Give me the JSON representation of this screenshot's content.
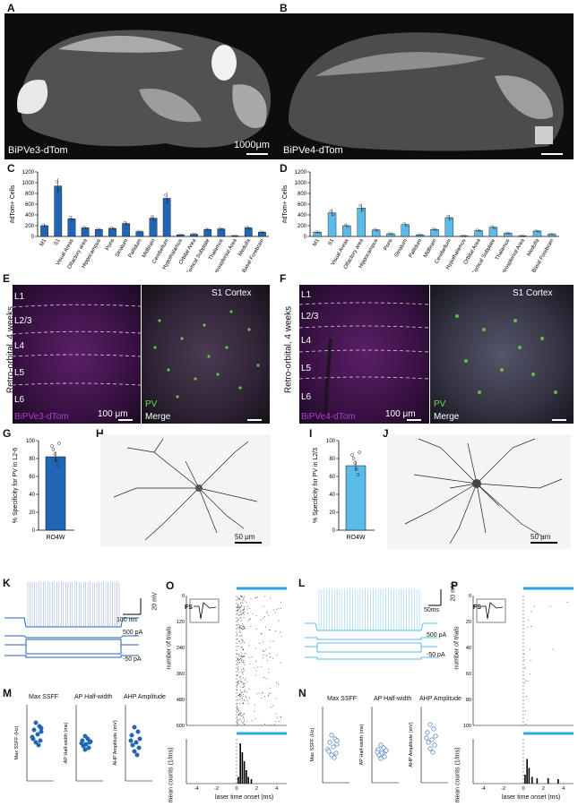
{
  "panels": {
    "A": "A",
    "B": "B",
    "C": "C",
    "D": "D",
    "E": "E",
    "F": "F",
    "G": "G",
    "H": "H",
    "I": "I",
    "J": "J",
    "K": "K",
    "L": "L",
    "M": "M",
    "N": "N",
    "O": "O",
    "P": "P"
  },
  "A": {
    "label": "BiPVe3-dTom",
    "scale": "1000μm"
  },
  "B": {
    "label": "BiPVe4-dTom"
  },
  "E": {
    "region": "S1 Cortex",
    "side": "Retro-orbital, 4 weeks",
    "layers": [
      "L1",
      "L2/3",
      "L4",
      "L5",
      "L6"
    ],
    "left_label": "BiPVe3-dTom",
    "pv": "PV",
    "merge": "Merge",
    "scale": "100 μm"
  },
  "F": {
    "region": "S1 Cortex",
    "side": "Retro-orbital, 4 weeks",
    "layers": [
      "L1",
      "L2/3",
      "L4",
      "L5",
      "L6"
    ],
    "left_label": "BiPVe4-dTom",
    "pv": "PV",
    "merge": "Merge",
    "scale": "100 μm"
  },
  "H": {
    "scale": "50 μm"
  },
  "J": {
    "scale": "50 μm"
  },
  "K": {
    "scale_t": "100 ms",
    "scale_v": "20 mV",
    "i_hi": "500 pA",
    "i_lo": "-50 pA"
  },
  "L": {
    "scale_t": "50ms",
    "scale_v": "20 mV",
    "i_hi": "500 pA",
    "i_lo": "-50 pA"
  },
  "O": {
    "inset": "FS",
    "inset_x": "time (ms)",
    "ylabel_top": "number of trials",
    "ylabel_bot": "mean counts (1/ms)",
    "xlabel": "laser time onset (ms)"
  },
  "P": {
    "inset": "FS",
    "inset_x": "time (ms)",
    "ylabel_top": "number of trials",
    "ylabel_bot": "mean counts (1/ms)",
    "xlabel": "laser time onset (ms)"
  },
  "M": {
    "titles": [
      "Max SSFF",
      "AP Half-width",
      "AHP Amplitude"
    ],
    "ylabels": [
      "Max SSFF (Hz)",
      "AP Half-width (ms)",
      "AHP Amplitude (mV)"
    ]
  },
  "N": {
    "titles": [
      "Max SSFF",
      "AP  Half-width",
      "AHP Amplitude"
    ],
    "ylabels": [
      "Max SSFF (Hz)",
      "AP Half-width (ms)",
      "AHP Amplitude (mV)"
    ]
  },
  "chart_data": [
    {
      "id": "C",
      "type": "bar",
      "ylabel": "#dTom+ Cells",
      "ylim": [
        0,
        1200
      ],
      "yticks": [
        0,
        200,
        400,
        600,
        800,
        1000,
        1200
      ],
      "color": "#2166b5",
      "categories": [
        "M1",
        "S1",
        "Visual Areas",
        "Olfactory area",
        "Hippocampus",
        "Pons",
        "Striatum",
        "Pallidum",
        "Midbrain",
        "Cerebellum",
        "Hypothalamus",
        "Orbital Area",
        "Cortical Subplate",
        "Thalamus",
        "Retrosplenial Area",
        "Medulla",
        "Basal Forebrain"
      ],
      "values": [
        200,
        940,
        330,
        160,
        130,
        150,
        240,
        90,
        340,
        710,
        30,
        40,
        130,
        140,
        10,
        160,
        80
      ]
    },
    {
      "id": "D",
      "type": "bar",
      "ylabel": "#dTom+ Cells",
      "ylim": [
        0,
        1200
      ],
      "yticks": [
        0,
        200,
        400,
        600,
        800,
        1000,
        1200
      ],
      "color": "#5bbbe8",
      "categories": [
        "M1",
        "S1",
        "Visual Areas",
        "Olfactory area",
        "Hippocampus",
        "Pons",
        "Striatum",
        "Pallidum",
        "Midbrain",
        "Cerebellum",
        "Hypothalamus",
        "Orbital Area",
        "Cortical Subplate",
        "Thalamus",
        "Retrosplenial Area",
        "Medulla",
        "Basal Forebrain"
      ],
      "values": [
        80,
        440,
        200,
        530,
        120,
        50,
        220,
        30,
        130,
        350,
        10,
        110,
        170,
        60,
        10,
        100,
        40
      ]
    },
    {
      "id": "G",
      "type": "bar",
      "ylabel": "% Specificity for PV in L2-6",
      "ylim": [
        0,
        100
      ],
      "yticks": [
        0,
        20,
        40,
        60,
        80,
        100
      ],
      "categories": [
        "RO4W"
      ],
      "values": [
        82
      ],
      "color": "#2166b5"
    },
    {
      "id": "I",
      "type": "bar",
      "ylabel": "% Specificity for  PV in L2/3",
      "ylim": [
        0,
        100
      ],
      "yticks": [
        0,
        20,
        40,
        60,
        80,
        100
      ],
      "categories": [
        "RO4W"
      ],
      "values": [
        72
      ],
      "color": "#5bbbe8"
    }
  ],
  "colors": {
    "bipve3": "#2166b5",
    "bipve4": "#5bbbe8",
    "magenta": "#b13bd0",
    "green": "#6cdc4a"
  }
}
